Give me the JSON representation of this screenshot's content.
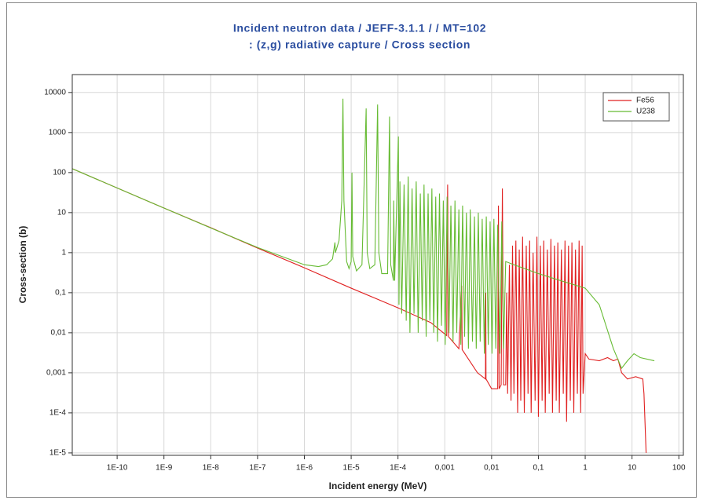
{
  "chart_data": {
    "type": "line",
    "title": [
      "Incident neutron data / JEFF-3.1.1 / / MT=102",
      ": (z,g) radiative capture / Cross section"
    ],
    "xlabel": "Incident energy (MeV)",
    "ylabel": "Cross-section (b)",
    "xscale": "log",
    "yscale": "log",
    "grid": true,
    "legend": "upper right",
    "xlim": [
      1.1e-11,
      125
    ],
    "ylim": [
      8.7e-06,
      28000
    ],
    "xticks": [
      {
        "value": 1e-10,
        "label": "1E-10"
      },
      {
        "value": 1e-09,
        "label": "1E-9"
      },
      {
        "value": 1e-08,
        "label": "1E-8"
      },
      {
        "value": 1e-07,
        "label": "1E-7"
      },
      {
        "value": 1e-06,
        "label": "1E-6"
      },
      {
        "value": 1e-05,
        "label": "1E-5"
      },
      {
        "value": 0.0001,
        "label": "1E-4"
      },
      {
        "value": 0.001,
        "label": "0,001"
      },
      {
        "value": 0.01,
        "label": "0,01"
      },
      {
        "value": 0.1,
        "label": "0,1"
      },
      1,
      10,
      100
    ],
    "yticks": [
      10000,
      1000,
      100,
      10,
      1,
      {
        "value": 0.1,
        "label": "0,1"
      },
      {
        "value": 0.01,
        "label": "0,01"
      },
      {
        "value": 0.001,
        "label": "0,001"
      },
      {
        "value": 0.0001,
        "label": "1E-4"
      },
      {
        "value": 1e-05,
        "label": "1E-5"
      }
    ],
    "series": [
      {
        "name": "Fe56",
        "color": "#e02020",
        "x": [
          1.1e-11,
          1e-09,
          1e-08,
          1e-07,
          1e-06,
          1e-05,
          0.0001,
          0.0005,
          0.0011,
          0.00115,
          0.0012,
          0.002,
          0.0023,
          0.00235,
          0.005,
          0.0074,
          0.0075,
          0.0076,
          0.01,
          0.0135,
          0.014,
          0.0145,
          0.016,
          0.017,
          0.018,
          0.02,
          0.021,
          0.022,
          0.024,
          0.026,
          0.028,
          0.03,
          0.033,
          0.036,
          0.039,
          0.042,
          0.046,
          0.05,
          0.055,
          0.06,
          0.065,
          0.07,
          0.077,
          0.085,
          0.093,
          0.1,
          0.11,
          0.12,
          0.13,
          0.14,
          0.155,
          0.17,
          0.185,
          0.2,
          0.22,
          0.24,
          0.26,
          0.28,
          0.31,
          0.34,
          0.37,
          0.4,
          0.44,
          0.48,
          0.52,
          0.57,
          0.62,
          0.68,
          0.74,
          0.8,
          0.86,
          0.9,
          1,
          1.2,
          2,
          3,
          4,
          5,
          6,
          8,
          12,
          17,
          18,
          20
        ],
        "values": [
          125,
          13,
          4.2,
          1.3,
          0.42,
          0.13,
          0.042,
          0.018,
          0.0085,
          50,
          0.008,
          0.004,
          0.15,
          0.0038,
          0.001,
          0.0007,
          0.1,
          0.0007,
          0.0004,
          0.0004,
          15,
          0.0004,
          0.0005,
          40,
          0.0005,
          0.0005,
          0.1,
          0.0003,
          0.5,
          0.0002,
          1.5,
          0.0003,
          2,
          0.0001,
          1.2,
          0.0002,
          2.5,
          0.0001,
          1.5,
          0.0003,
          2,
          0.0001,
          1,
          0.0002,
          2.5,
          8e-05,
          1.5,
          0.0002,
          2,
          0.0001,
          1.2,
          0.0003,
          2.2,
          0.0001,
          1.5,
          0.0002,
          1.8,
          0.0001,
          1.2,
          0.0003,
          2,
          6e-05,
          1.5,
          0.0002,
          1.8,
          0.0001,
          1.2,
          0.0003,
          2,
          0.0001,
          1.5,
          0.0003,
          0.003,
          0.0022,
          0.002,
          0.0024,
          0.002,
          0.0022,
          0.001,
          0.0007,
          0.0008,
          0.0007,
          0.0003,
          1e-05
        ]
      },
      {
        "name": "U238",
        "color": "#66bb33",
        "x": [
          1.1e-11,
          1e-09,
          1e-08,
          1e-07,
          1e-06,
          2e-06,
          3e-06,
          4e-06,
          4.5e-06,
          4.6e-06,
          5.5e-06,
          6.3e-06,
          6.67e-06,
          7e-06,
          8e-06,
          9e-06,
          1e-05,
          1.04e-05,
          1.08e-05,
          1.3e-05,
          1.7e-05,
          2.09e-05,
          2.2e-05,
          2.5e-05,
          3.2e-05,
          3.67e-05,
          3.9e-05,
          4.5e-05,
          6e-05,
          6.6e-05,
          7e-05,
          8e-05,
          8.1e-05,
          8.5e-05,
          0.000102,
          0.000105,
          0.00011,
          0.00012,
          0.000135,
          0.00015,
          0.000165,
          0.00018,
          0.0002,
          0.00022,
          0.000245,
          0.00027,
          0.0003,
          0.00033,
          0.00036,
          0.0004,
          0.00044,
          0.00048,
          0.00053,
          0.00058,
          0.00064,
          0.0007,
          0.00077,
          0.00085,
          0.00093,
          0.00102,
          0.00112,
          0.00123,
          0.00135,
          0.0015,
          0.00165,
          0.0018,
          0.002,
          0.0022,
          0.0024,
          0.00265,
          0.0029,
          0.0032,
          0.0035,
          0.0039,
          0.0043,
          0.0047,
          0.0052,
          0.0057,
          0.0063,
          0.007,
          0.0077,
          0.0085,
          0.0093,
          0.0102,
          0.0112,
          0.0123,
          0.0135,
          0.015,
          0.0165,
          0.018,
          0.02,
          0.03,
          0.1,
          0.3,
          1,
          2,
          4,
          6,
          8,
          11,
          15,
          30
        ],
        "values": [
          125,
          13,
          4.15,
          1.35,
          0.5,
          0.45,
          0.5,
          0.7,
          1.8,
          1.0,
          2,
          20,
          7000,
          20,
          0.6,
          0.4,
          0.6,
          100,
          0.8,
          0.35,
          0.5,
          4000,
          1,
          0.4,
          0.5,
          5000,
          1,
          0.3,
          0.3,
          2500,
          0.5,
          0.2,
          20,
          0.2,
          800,
          0.05,
          60,
          0.03,
          50,
          0.02,
          80,
          0.01,
          40,
          0.03,
          60,
          0.01,
          30,
          0.02,
          50,
          0.008,
          30,
          0.02,
          40,
          0.01,
          25,
          0.006,
          30,
          0.015,
          20,
          0.005,
          25,
          0.01,
          15,
          0.006,
          20,
          0.01,
          12,
          0.005,
          15,
          0.008,
          10,
          0.004,
          12,
          0.006,
          8,
          0.004,
          10,
          0.006,
          7,
          0.003,
          8,
          0.005,
          6,
          0.003,
          7,
          0.004,
          5,
          0.003,
          6,
          0.004,
          0.6,
          0.5,
          0.3,
          0.2,
          0.13,
          0.05,
          0.004,
          0.0013,
          0.002,
          0.003,
          0.0024,
          0.002
        ]
      }
    ]
  }
}
